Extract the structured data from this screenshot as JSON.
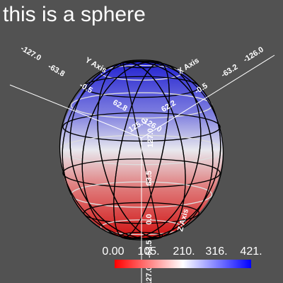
{
  "title": "this is a sphere",
  "x_axis": {
    "label": "X Axis",
    "ticks": [
      "-126.0",
      "-63.2",
      "-0.5",
      "62.2",
      "125.0"
    ]
  },
  "y_axis": {
    "label": "Y Axis",
    "ticks": [
      "-127.0",
      "-63.8",
      "-0.5",
      "62.8",
      "126.0"
    ]
  },
  "z_axis": {
    "label": "Z Axis",
    "ticks": [
      "127.0",
      "63.5",
      "0.0",
      "-63.5",
      "-127.0"
    ]
  },
  "scalar_bar": {
    "labels": [
      "0.00",
      "105.",
      "210.",
      "316.",
      "421."
    ]
  }
}
